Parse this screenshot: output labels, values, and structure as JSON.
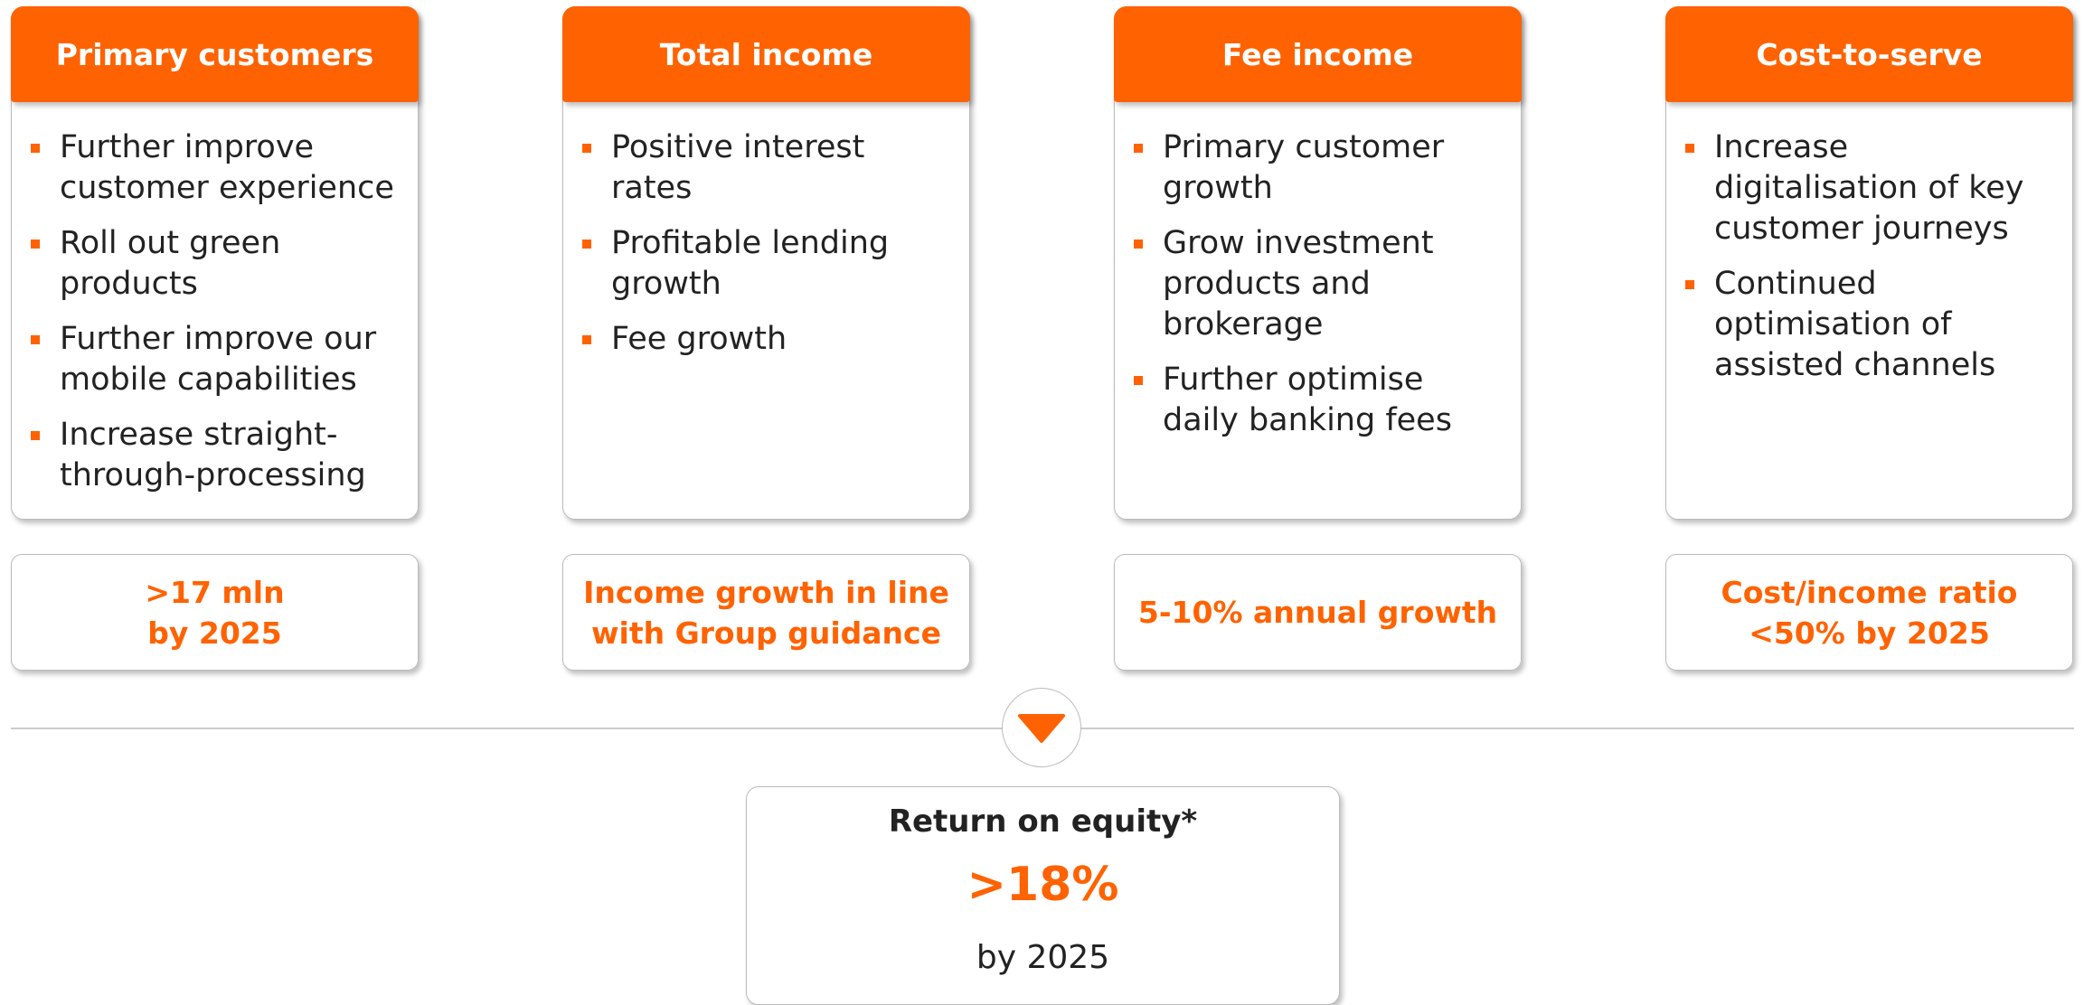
{
  "columns": [
    {
      "header": "Primary customers",
      "bullets": [
        "Further improve customer experience",
        "Roll out green products",
        "Further improve our mobile capabilities",
        "Increase straight-through-processing"
      ],
      "target": [
        ">17 mln",
        "by 2025"
      ]
    },
    {
      "header": "Total income",
      "bullets": [
        "Positive interest rates",
        "Profitable lending growth",
        "Fee growth"
      ],
      "target": [
        "Income growth in line",
        "with Group guidance"
      ]
    },
    {
      "header": "Fee income",
      "bullets": [
        "Primary customer growth",
        "Grow investment products and brokerage",
        "Further optimise daily banking fees"
      ],
      "target": [
        "5-10% annual growth"
      ]
    },
    {
      "header": "Cost-to-serve",
      "bullets": [
        "Increase digitalisation of key customer journeys",
        "Continued optimisation of assisted channels"
      ],
      "target": [
        "Cost/income ratio",
        "<50% by 2025"
      ]
    }
  ],
  "result": {
    "title": "Return on equity*",
    "value": ">18%",
    "note": "by 2025"
  }
}
